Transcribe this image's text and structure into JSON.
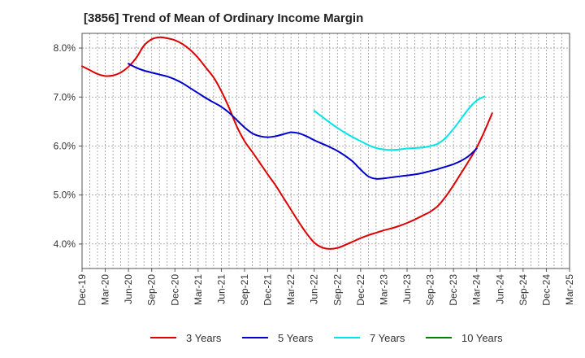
{
  "title": "[3856]  Trend of Mean of Ordinary Income Margin",
  "chart_data": {
    "type": "line",
    "title": "[3856]  Trend of Mean of Ordinary Income Margin",
    "xlabel": "",
    "ylabel": "",
    "x_ticks": [
      "Dec-19",
      "Mar-20",
      "Jun-20",
      "Sep-20",
      "Dec-20",
      "Mar-21",
      "Jun-21",
      "Sep-21",
      "Dec-21",
      "Mar-22",
      "Jun-22",
      "Sep-22",
      "Dec-22",
      "Mar-23",
      "Jun-23",
      "Sep-23",
      "Dec-23",
      "Mar-24",
      "Jun-24",
      "Sep-24",
      "Dec-24",
      "Mar-25"
    ],
    "y_ticks": [
      "4.0%",
      "5.0%",
      "6.0%",
      "7.0%",
      "8.0%"
    ],
    "y_tick_values": [
      4.0,
      5.0,
      6.0,
      7.0,
      8.0
    ],
    "ylim": [
      3.5,
      8.3
    ],
    "grid": true,
    "legend_position": "bottom",
    "series": [
      {
        "name": "3 Years",
        "color": "#dd0000",
        "points": [
          [
            "Dec-19",
            7.63
          ],
          [
            "Jan-20",
            7.55
          ],
          [
            "Feb-20",
            7.47
          ],
          [
            "Mar-20",
            7.43
          ],
          [
            "Apr-20",
            7.44
          ],
          [
            "May-20",
            7.5
          ],
          [
            "Jun-20",
            7.62
          ],
          [
            "Jul-20",
            7.8
          ],
          [
            "Aug-20",
            8.05
          ],
          [
            "Sep-20",
            8.18
          ],
          [
            "Oct-20",
            8.22
          ],
          [
            "Nov-20",
            8.2
          ],
          [
            "Dec-20",
            8.16
          ],
          [
            "Jan-21",
            8.08
          ],
          [
            "Feb-21",
            7.96
          ],
          [
            "Mar-21",
            7.8
          ],
          [
            "Apr-21",
            7.6
          ],
          [
            "May-21",
            7.4
          ],
          [
            "Jun-21",
            7.12
          ],
          [
            "Jul-21",
            6.78
          ],
          [
            "Aug-21",
            6.4
          ],
          [
            "Sep-21",
            6.1
          ],
          [
            "Oct-21",
            5.88
          ],
          [
            "Nov-21",
            5.65
          ],
          [
            "Dec-21",
            5.42
          ],
          [
            "Jan-22",
            5.2
          ],
          [
            "Feb-22",
            4.95
          ],
          [
            "Mar-22",
            4.7
          ],
          [
            "Apr-22",
            4.45
          ],
          [
            "May-22",
            4.22
          ],
          [
            "Jun-22",
            4.03
          ],
          [
            "Jul-22",
            3.93
          ],
          [
            "Aug-22",
            3.9
          ],
          [
            "Sep-22",
            3.92
          ],
          [
            "Oct-22",
            3.98
          ],
          [
            "Nov-22",
            4.05
          ],
          [
            "Dec-22",
            4.12
          ],
          [
            "Jan-23",
            4.18
          ],
          [
            "Feb-23",
            4.23
          ],
          [
            "Mar-23",
            4.28
          ],
          [
            "Apr-23",
            4.32
          ],
          [
            "May-23",
            4.37
          ],
          [
            "Jun-23",
            4.43
          ],
          [
            "Jul-23",
            4.5
          ],
          [
            "Aug-23",
            4.58
          ],
          [
            "Sep-23",
            4.66
          ],
          [
            "Oct-23",
            4.78
          ],
          [
            "Nov-23",
            4.97
          ],
          [
            "Dec-23",
            5.2
          ],
          [
            "Jan-24",
            5.45
          ],
          [
            "Feb-24",
            5.7
          ],
          [
            "Mar-24",
            5.97
          ],
          [
            "Apr-24",
            6.3
          ],
          [
            "May-24",
            6.67
          ]
        ]
      },
      {
        "name": "5 Years",
        "color": "#0000cc",
        "points": [
          [
            "Jun-20",
            7.68
          ],
          [
            "Jul-20",
            7.6
          ],
          [
            "Aug-20",
            7.54
          ],
          [
            "Sep-20",
            7.5
          ],
          [
            "Oct-20",
            7.46
          ],
          [
            "Nov-20",
            7.42
          ],
          [
            "Dec-20",
            7.36
          ],
          [
            "Jan-21",
            7.28
          ],
          [
            "Feb-21",
            7.18
          ],
          [
            "Mar-21",
            7.08
          ],
          [
            "Apr-21",
            6.98
          ],
          [
            "May-21",
            6.89
          ],
          [
            "Jun-21",
            6.8
          ],
          [
            "Jul-21",
            6.68
          ],
          [
            "Aug-21",
            6.53
          ],
          [
            "Sep-21",
            6.38
          ],
          [
            "Oct-21",
            6.26
          ],
          [
            "Nov-21",
            6.2
          ],
          [
            "Dec-21",
            6.18
          ],
          [
            "Jan-22",
            6.2
          ],
          [
            "Feb-22",
            6.24
          ],
          [
            "Mar-22",
            6.28
          ],
          [
            "Apr-22",
            6.26
          ],
          [
            "May-22",
            6.2
          ],
          [
            "Jun-22",
            6.12
          ],
          [
            "Jul-22",
            6.05
          ],
          [
            "Aug-22",
            5.98
          ],
          [
            "Sep-22",
            5.9
          ],
          [
            "Oct-22",
            5.8
          ],
          [
            "Nov-22",
            5.68
          ],
          [
            "Dec-22",
            5.52
          ],
          [
            "Jan-23",
            5.38
          ],
          [
            "Feb-23",
            5.33
          ],
          [
            "Mar-23",
            5.34
          ],
          [
            "Apr-23",
            5.36
          ],
          [
            "May-23",
            5.38
          ],
          [
            "Jun-23",
            5.4
          ],
          [
            "Jul-23",
            5.42
          ],
          [
            "Aug-23",
            5.45
          ],
          [
            "Sep-23",
            5.49
          ],
          [
            "Oct-23",
            5.53
          ],
          [
            "Nov-23",
            5.58
          ],
          [
            "Dec-23",
            5.63
          ],
          [
            "Jan-24",
            5.7
          ],
          [
            "Feb-24",
            5.8
          ],
          [
            "Mar-24",
            5.95
          ]
        ]
      },
      {
        "name": "7 Years",
        "color": "#00e5e5",
        "points": [
          [
            "Jun-22",
            6.72
          ],
          [
            "Jul-22",
            6.6
          ],
          [
            "Aug-22",
            6.48
          ],
          [
            "Sep-22",
            6.37
          ],
          [
            "Oct-22",
            6.27
          ],
          [
            "Nov-22",
            6.18
          ],
          [
            "Dec-22",
            6.1
          ],
          [
            "Jan-23",
            6.02
          ],
          [
            "Feb-23",
            5.96
          ],
          [
            "Mar-23",
            5.93
          ],
          [
            "Apr-23",
            5.92
          ],
          [
            "May-23",
            5.93
          ],
          [
            "Jun-23",
            5.95
          ],
          [
            "Jul-23",
            5.96
          ],
          [
            "Aug-23",
            5.97
          ],
          [
            "Sep-23",
            6.0
          ],
          [
            "Oct-23",
            6.05
          ],
          [
            "Nov-23",
            6.17
          ],
          [
            "Dec-23",
            6.35
          ],
          [
            "Jan-24",
            6.56
          ],
          [
            "Feb-24",
            6.77
          ],
          [
            "Mar-24",
            6.93
          ],
          [
            "Apr-24",
            7.01
          ]
        ]
      },
      {
        "name": "10 Years",
        "color": "#008000",
        "points": []
      }
    ]
  }
}
